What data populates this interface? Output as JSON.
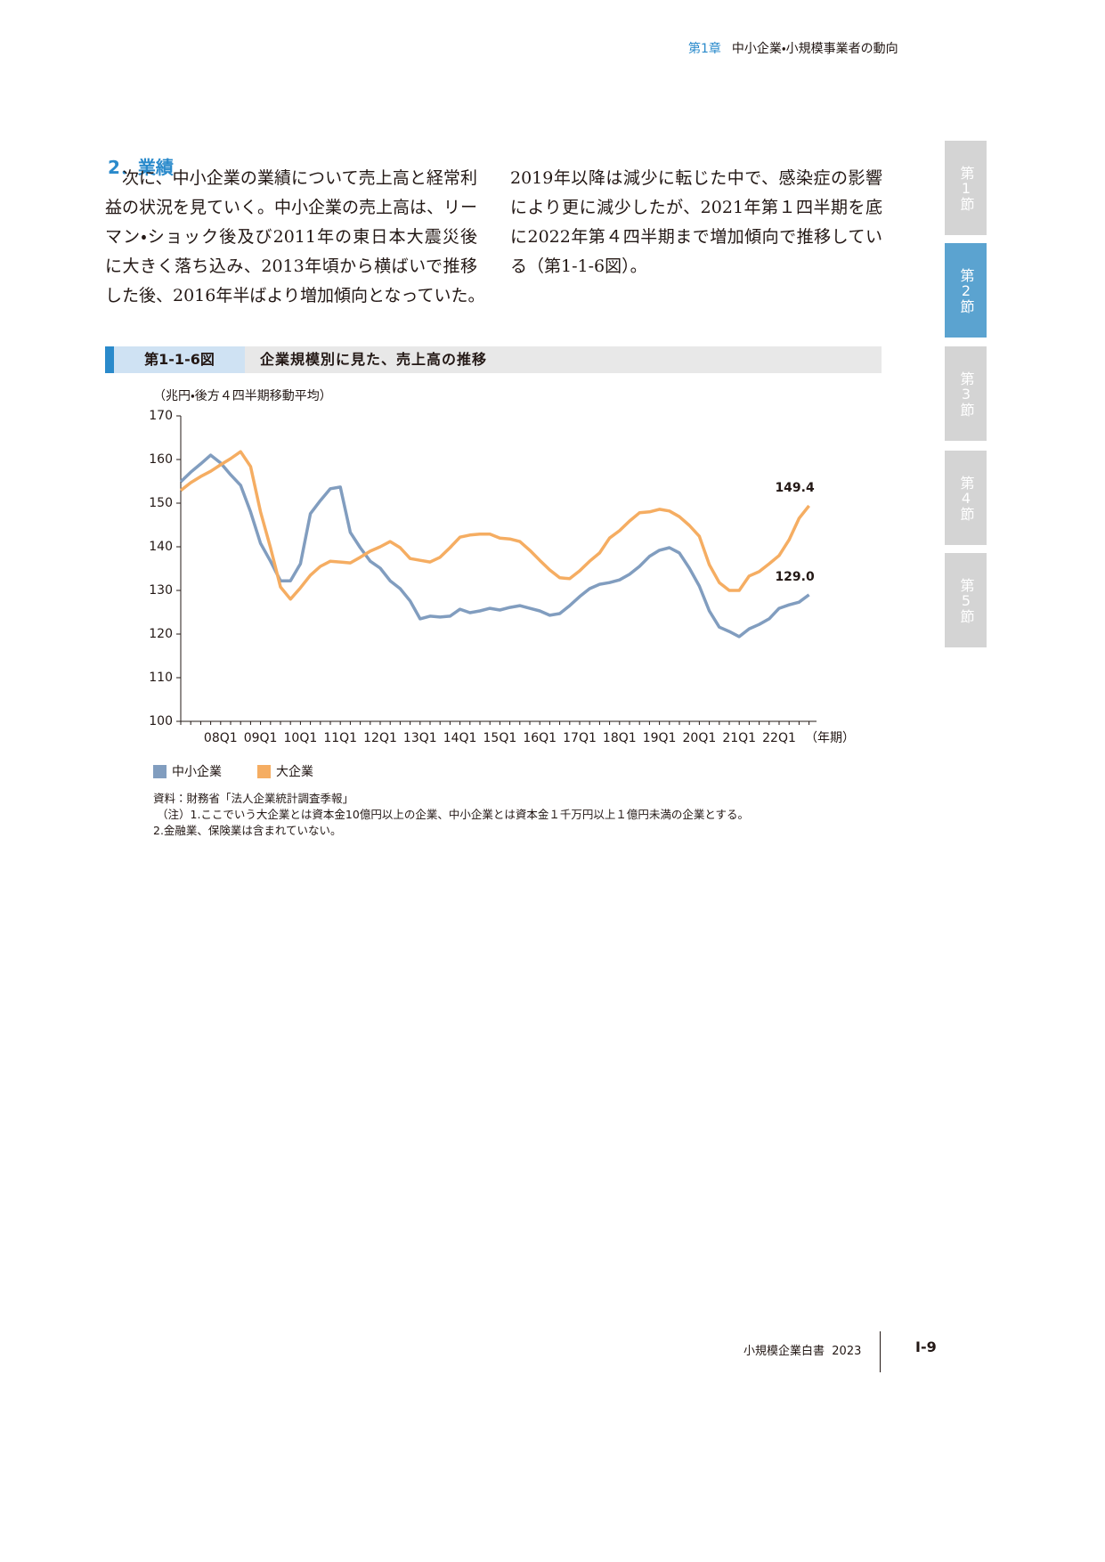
{
  "header": {
    "chapter": "第1章",
    "title": "中小企業・小規模事業者の動向"
  },
  "section": {
    "heading": "2．業績",
    "left_lines": [
      "次に、中小企業の業績について売上高と経常利",
      "益の状況を見ていく。中小企業の売上高は、リー",
      "マン・ショック後及び2011年の東日本大震災後",
      "に大きく落ち込み、2013年頃から横ばいで推移",
      "した後、2016年半ばより増加傾向となっていた。"
    ],
    "right_lines": [
      "2019年以降は減少に転じた中で、感染症の影響",
      "により更に減少したが、2021年第１四半期を底",
      "に2022年第４四半期まで増加傾向で推移してい",
      "る（第1-1-6図）。"
    ]
  },
  "figure": {
    "number": "第1-1-6図",
    "title": "企業規模別に見た、売上高の推移"
  },
  "chart_data": {
    "type": "line",
    "y_label": "（兆円・後方４四半期移動平均）",
    "x_label": "（年期）",
    "categories": [
      null,
      null,
      null,
      null,
      "08Q1",
      null,
      null,
      null,
      "09Q1",
      null,
      null,
      null,
      "10Q1",
      null,
      null,
      null,
      "11Q1",
      null,
      null,
      null,
      "12Q1",
      null,
      null,
      null,
      "13Q1",
      null,
      null,
      null,
      "14Q1",
      null,
      null,
      null,
      "15Q1",
      null,
      null,
      null,
      "16Q1",
      null,
      null,
      null,
      "17Q1",
      null,
      null,
      null,
      "18Q1",
      null,
      null,
      null,
      "19Q1",
      null,
      null,
      null,
      "20Q1",
      null,
      null,
      null,
      "21Q1",
      null,
      null,
      null,
      "22Q1",
      null,
      null,
      null
    ],
    "ylim": [
      100,
      170
    ],
    "yticks": [
      100,
      110,
      120,
      130,
      140,
      150,
      160,
      170
    ],
    "series": [
      {
        "name": "中小企業",
        "color": "#819dbf",
        "values": [
          154.9,
          157.1,
          159.0,
          161.0,
          159.2,
          156.5,
          154.1,
          148.0,
          140.8,
          136.7,
          132.2,
          132.2,
          136.1,
          147.6,
          150.6,
          153.3,
          153.7,
          143.3,
          139.8,
          136.7,
          135.1,
          132.2,
          130.4,
          127.6,
          123.5,
          124.1,
          123.9,
          124.1,
          125.7,
          124.9,
          125.3,
          125.9,
          125.5,
          126.1,
          126.5,
          125.9,
          125.3,
          124.3,
          124.7,
          126.5,
          128.6,
          130.4,
          131.4,
          131.8,
          132.4,
          133.7,
          135.5,
          137.8,
          139.2,
          139.8,
          138.6,
          135.1,
          131.0,
          125.3,
          121.6,
          120.6,
          119.4,
          121.2,
          122.2,
          123.5,
          125.9,
          126.7,
          127.3,
          129.0
        ],
        "value_labels": [
          null,
          null,
          null,
          null,
          null,
          null,
          null,
          null,
          null,
          null,
          null,
          null,
          null,
          null,
          null,
          null,
          null,
          null,
          null,
          null,
          null,
          null,
          null,
          null,
          null,
          null,
          null,
          null,
          null,
          null,
          null,
          null,
          null,
          null,
          null,
          null,
          null,
          null,
          null,
          null,
          null,
          null,
          null,
          null,
          null,
          null,
          null,
          null,
          null,
          null,
          null,
          null,
          null,
          null,
          null,
          null,
          null,
          null,
          null,
          null,
          null,
          null,
          null,
          "129.0"
        ]
      },
      {
        "name": "大企業",
        "color": "#f5ad62",
        "values": [
          152.9,
          154.7,
          156.1,
          157.3,
          158.8,
          160.2,
          161.8,
          158.4,
          148.0,
          139.8,
          130.8,
          128.0,
          130.6,
          133.5,
          135.5,
          136.7,
          136.5,
          136.3,
          137.6,
          139.0,
          140.0,
          141.2,
          139.8,
          137.3,
          136.9,
          136.5,
          137.6,
          139.8,
          142.2,
          142.7,
          142.9,
          142.9,
          142.0,
          141.8,
          141.2,
          139.2,
          136.9,
          134.7,
          132.9,
          132.7,
          134.5,
          136.7,
          138.6,
          142.0,
          143.7,
          145.9,
          147.8,
          148.0,
          148.6,
          148.2,
          146.9,
          144.9,
          142.4,
          135.9,
          131.8,
          130.0,
          130.0,
          133.3,
          134.3,
          136.1,
          138.0,
          141.6,
          146.5,
          149.4
        ],
        "value_labels": [
          null,
          null,
          null,
          null,
          null,
          null,
          null,
          null,
          null,
          null,
          null,
          null,
          null,
          null,
          null,
          null,
          null,
          null,
          null,
          null,
          null,
          null,
          null,
          null,
          null,
          null,
          null,
          null,
          null,
          null,
          null,
          null,
          null,
          null,
          null,
          null,
          null,
          null,
          null,
          null,
          null,
          null,
          null,
          null,
          null,
          null,
          null,
          null,
          null,
          null,
          null,
          null,
          null,
          null,
          null,
          null,
          null,
          null,
          null,
          null,
          null,
          null,
          null,
          "149.4"
        ]
      }
    ]
  },
  "notes": [
    "資料：財務省「法人企業統計調査季報」",
    "（注）1.ここでいう大企業とは資本金10億円以上の企業、中小企業とは資本金１千万円以上１億円未満の企業とする。",
    "2.金融業、保険業は含まれていない。"
  ],
  "side_tabs": [
    {
      "label": "第1節",
      "active": false
    },
    {
      "label": "第2節",
      "active": true
    },
    {
      "label": "第3節",
      "active": false
    },
    {
      "label": "第4節",
      "active": false
    },
    {
      "label": "第5節",
      "active": false
    }
  ],
  "footer": {
    "title": "小規模企業白書",
    "year": "2023",
    "page": "Ⅰ-9"
  }
}
